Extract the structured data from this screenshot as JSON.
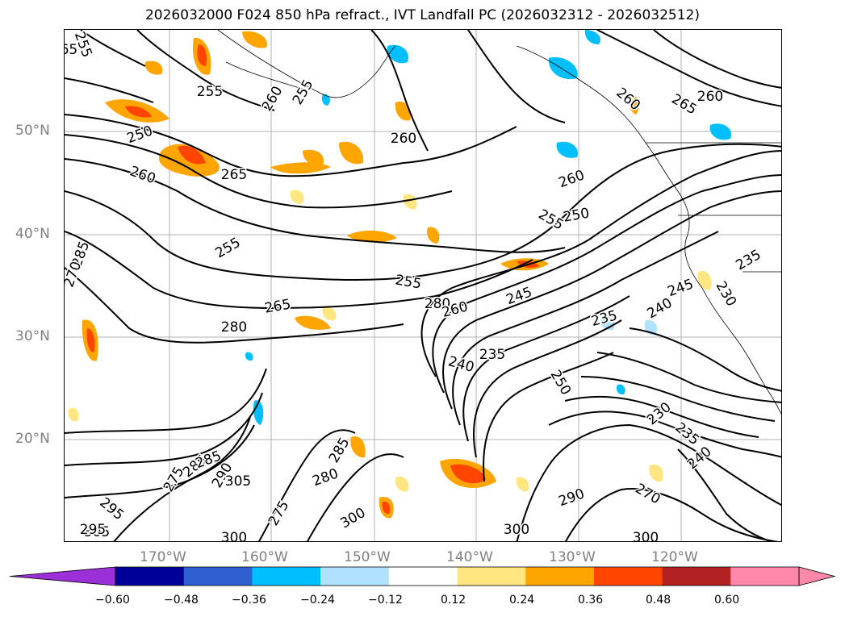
{
  "title": "2026032000 F024 850 hPa refract., IVT Landfall PC (2026032312 - 2026032512)",
  "lat_labels": [
    "50°N",
    "40°N",
    "30°N",
    "20°N"
  ],
  "lon_labels": [
    "170°W",
    "160°W",
    "150°W",
    "140°W",
    "130°W",
    "120°W"
  ],
  "colorbar": {
    "ticks": [
      "−0.60",
      "−0.48",
      "−0.36",
      "−0.24",
      "−0.12",
      "0.12",
      "0.24",
      "0.36",
      "0.48",
      "0.60"
    ],
    "colors": [
      "#9b30d9",
      "#000099",
      "#3060d0",
      "#00bfff",
      "#b0e2ff",
      "#ffffff",
      "#ffe680",
      "#ffa500",
      "#ff4500",
      "#b22222",
      "#ff88aa",
      "#ff88aa"
    ]
  },
  "contour_labels": [
    "255",
    "250",
    "260",
    "265",
    "255",
    "260",
    "265",
    "255",
    "260",
    "260",
    "265",
    "260",
    "260",
    "250",
    "255",
    "255",
    "255",
    "245",
    "265",
    "280",
    "280",
    "260",
    "285",
    "270",
    "235",
    "240",
    "235",
    "240",
    "245",
    "230",
    "235",
    "250",
    "230",
    "235",
    "240",
    "290",
    "285",
    "305",
    "295",
    "305",
    "275",
    "285",
    "280",
    "275",
    "300",
    "300",
    "295",
    "270",
    "300",
    "300",
    "290",
    "285"
  ]
}
